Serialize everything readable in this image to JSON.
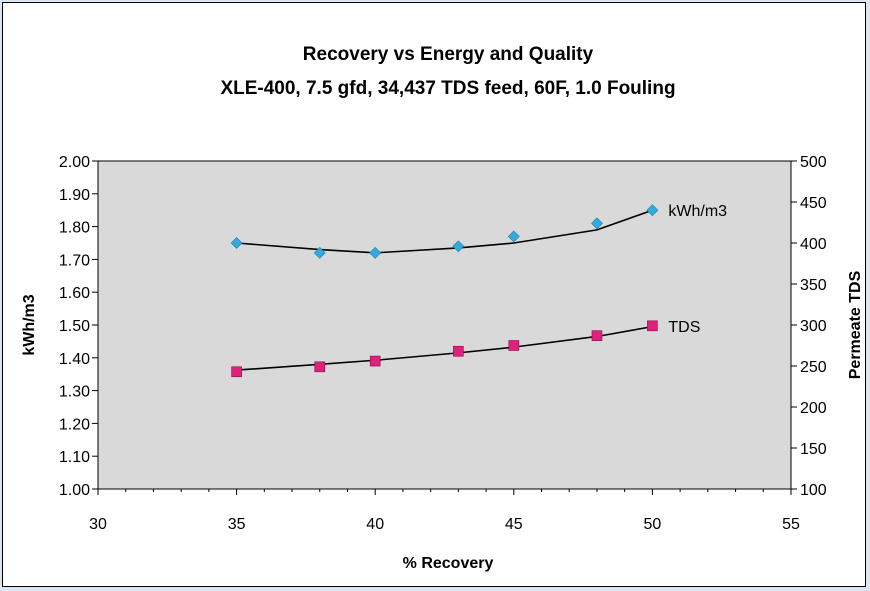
{
  "chart_data": {
    "type": "scatter",
    "title": "Recovery vs Energy and Quality",
    "subtitle": "XLE-400, 7.5 gfd, 34,437 TDS feed, 60F, 1.0 Fouling",
    "xlabel": "% Recovery",
    "ylabel": "kWh/m3",
    "y2label": "Permeate TDS",
    "xlim": [
      30,
      55
    ],
    "ylim": [
      1.0,
      2.0
    ],
    "y2lim": [
      100,
      500
    ],
    "xticks": [
      "30",
      "35",
      "40",
      "45",
      "50",
      "55"
    ],
    "yticks": [
      "1.00",
      "1.10",
      "1.20",
      "1.30",
      "1.40",
      "1.50",
      "1.60",
      "1.70",
      "1.80",
      "1.90",
      "2.00"
    ],
    "y2ticks": [
      "100",
      "150",
      "200",
      "250",
      "300",
      "350",
      "400",
      "450",
      "500"
    ],
    "grid": false,
    "plot_background": "#d9d9d9",
    "series": [
      {
        "name": "kWh/m3",
        "axis": "left",
        "marker": "diamond",
        "color": "#33aadd",
        "x": [
          35,
          38,
          40,
          43,
          45,
          48,
          50
        ],
        "y": [
          1.75,
          1.72,
          1.72,
          1.74,
          1.77,
          1.81,
          1.85
        ],
        "trend_y": [
          1.75,
          1.73,
          1.72,
          1.735,
          1.75,
          1.79,
          1.85
        ]
      },
      {
        "name": "TDS",
        "axis": "right",
        "marker": "square",
        "color": "#e0207a",
        "x": [
          35,
          38,
          40,
          43,
          45,
          48,
          50
        ],
        "y": [
          243,
          249,
          256,
          268,
          275,
          287,
          299
        ],
        "trend_y": [
          245,
          252,
          257,
          266,
          273,
          286,
          298
        ]
      }
    ]
  }
}
